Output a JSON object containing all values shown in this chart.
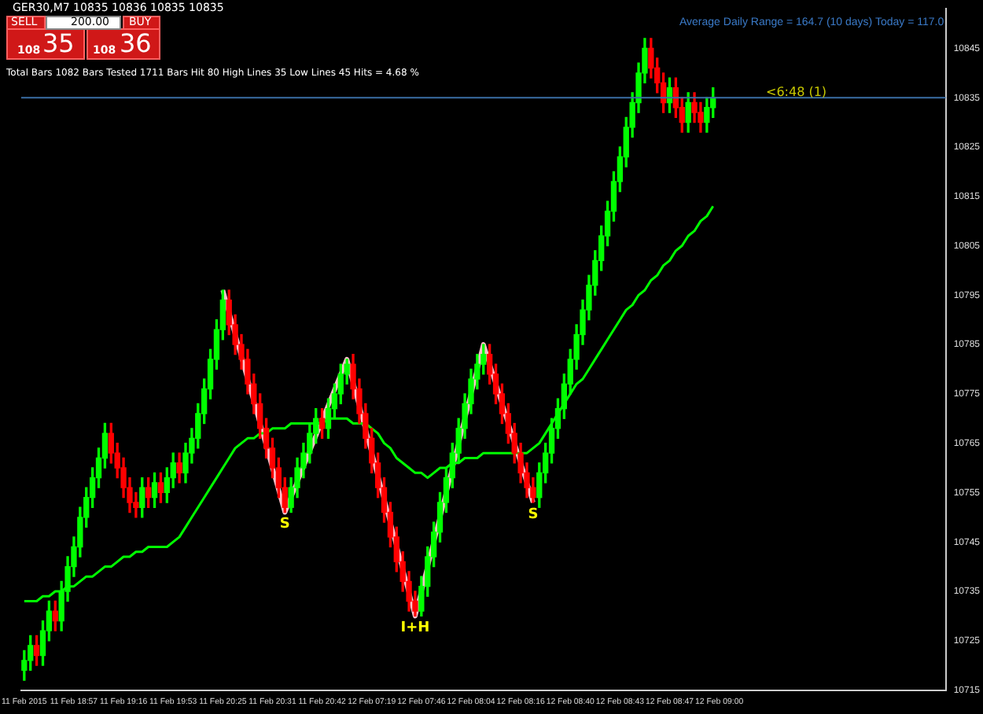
{
  "chart_data": {
    "type": "candlestick",
    "title": "GER30,M7  10835 10836 10835 10835",
    "categories": [
      "11 Feb 2015",
      null,
      null,
      null,
      null,
      null,
      null,
      null,
      "11 Feb 18:57",
      null,
      null,
      null,
      null,
      null,
      null,
      null,
      "11 Feb 19:16",
      null,
      null,
      null,
      null,
      null,
      null,
      null,
      "11 Feb 19:53",
      null,
      null,
      null,
      null,
      null,
      null,
      null,
      "11 Feb 20:25",
      null,
      null,
      null,
      null,
      null,
      null,
      null,
      "11 Feb 20:31",
      null,
      null,
      null,
      null,
      null,
      null,
      null,
      "11 Feb 20:42",
      null,
      null,
      null,
      null,
      null,
      null,
      null,
      "12 Feb 07:19",
      null,
      null,
      null,
      null,
      null,
      null,
      null,
      "12 Feb 07:46",
      null,
      null,
      null,
      null,
      null,
      null,
      null,
      "12 Feb 08:04",
      null,
      null,
      null,
      null,
      null,
      null,
      null,
      "12 Feb 08:16",
      null,
      null,
      null,
      null,
      null,
      null,
      null,
      "12 Feb 08:40",
      null,
      null,
      null,
      null,
      null,
      null,
      null,
      "12 Feb 08:43",
      null,
      null,
      null,
      null,
      null,
      null,
      null,
      "12 Feb 08:47",
      null,
      null,
      null,
      null,
      null,
      null,
      null,
      "12 Feb 09:00",
      null,
      null,
      null,
      null,
      null,
      null,
      null,
      null,
      null,
      null,
      null,
      null,
      null,
      null,
      null,
      null,
      null,
      null,
      null,
      null,
      null,
      null,
      null,
      null,
      null,
      null,
      null,
      null,
      null,
      null,
      null,
      null,
      null,
      null,
      null,
      null
    ],
    "ohlc": [
      [
        10719,
        10723,
        10717,
        10721
      ],
      [
        10721,
        10726,
        10719,
        10724
      ],
      [
        10724,
        10726,
        10720,
        10722
      ],
      [
        10722,
        10729,
        10720,
        10727
      ],
      [
        10727,
        10733,
        10725,
        10731
      ],
      [
        10731,
        10733,
        10727,
        10729
      ],
      [
        10729,
        10737,
        10727,
        10735
      ],
      [
        10735,
        10742,
        10733,
        10740
      ],
      [
        10740,
        10746,
        10738,
        10744
      ],
      [
        10744,
        10752,
        10742,
        10750
      ],
      [
        10750,
        10756,
        10748,
        10754
      ],
      [
        10754,
        10760,
        10752,
        10758
      ],
      [
        10758,
        10764,
        10756,
        10762
      ],
      [
        10762,
        10769,
        10760,
        10767
      ],
      [
        10767,
        10769,
        10761,
        10763
      ],
      [
        10763,
        10765,
        10758,
        10760
      ],
      [
        10760,
        10762,
        10754,
        10756
      ],
      [
        10756,
        10758,
        10751,
        10753
      ],
      [
        10753,
        10755,
        10750,
        10752
      ],
      [
        10752,
        10758,
        10750,
        10756
      ],
      [
        10756,
        10758,
        10752,
        10754
      ],
      [
        10754,
        10759,
        10752,
        10757
      ],
      [
        10757,
        10759,
        10753,
        10755
      ],
      [
        10755,
        10760,
        10753,
        10758
      ],
      [
        10758,
        10763,
        10756,
        10761
      ],
      [
        10761,
        10763,
        10757,
        10759
      ],
      [
        10759,
        10765,
        10757,
        10763
      ],
      [
        10763,
        10768,
        10761,
        10766
      ],
      [
        10766,
        10773,
        10764,
        10771
      ],
      [
        10771,
        10778,
        10769,
        10776
      ],
      [
        10776,
        10784,
        10774,
        10782
      ],
      [
        10782,
        10790,
        10780,
        10788
      ],
      [
        10788,
        10796,
        10786,
        10794
      ],
      [
        10794,
        10796,
        10787,
        10789
      ],
      [
        10789,
        10791,
        10783,
        10785
      ],
      [
        10785,
        10787,
        10780,
        10782
      ],
      [
        10782,
        10784,
        10775,
        10777
      ],
      [
        10777,
        10779,
        10771,
        10773
      ],
      [
        10773,
        10775,
        10766,
        10768
      ],
      [
        10768,
        10770,
        10762,
        10764
      ],
      [
        10764,
        10766,
        10758,
        10760
      ],
      [
        10760,
        10762,
        10754,
        10756
      ],
      [
        10756,
        10758,
        10751,
        10752
      ],
      [
        10752,
        10758,
        10751,
        10756
      ],
      [
        10756,
        10762,
        10754,
        10760
      ],
      [
        10760,
        10765,
        10758,
        10763
      ],
      [
        10763,
        10769,
        10761,
        10767
      ],
      [
        10767,
        10772,
        10765,
        10770
      ],
      [
        10770,
        10772,
        10766,
        10768
      ],
      [
        10768,
        10774,
        10766,
        10772
      ],
      [
        10772,
        10777,
        10770,
        10775
      ],
      [
        10775,
        10781,
        10773,
        10779
      ],
      [
        10779,
        10782,
        10777,
        10781
      ],
      [
        10781,
        10783,
        10774,
        10776
      ],
      [
        10776,
        10778,
        10769,
        10771
      ],
      [
        10771,
        10773,
        10764,
        10766
      ],
      [
        10766,
        10768,
        10759,
        10761
      ],
      [
        10761,
        10763,
        10754,
        10756
      ],
      [
        10756,
        10758,
        10749,
        10751
      ],
      [
        10751,
        10753,
        10744,
        10746
      ],
      [
        10746,
        10748,
        10739,
        10741
      ],
      [
        10741,
        10743,
        10735,
        10737
      ],
      [
        10737,
        10739,
        10731,
        10733
      ],
      [
        10733,
        10735,
        10730,
        10731
      ],
      [
        10731,
        10738,
        10730,
        10736
      ],
      [
        10736,
        10744,
        10734,
        10742
      ],
      [
        10742,
        10749,
        10740,
        10747
      ],
      [
        10747,
        10755,
        10745,
        10753
      ],
      [
        10753,
        10760,
        10751,
        10758
      ],
      [
        10758,
        10765,
        10756,
        10763
      ],
      [
        10763,
        10770,
        10761,
        10768
      ],
      [
        10768,
        10775,
        10766,
        10773
      ],
      [
        10773,
        10780,
        10771,
        10778
      ],
      [
        10778,
        10783,
        10776,
        10781
      ],
      [
        10781,
        10785,
        10779,
        10783
      ],
      [
        10783,
        10785,
        10777,
        10779
      ],
      [
        10779,
        10781,
        10773,
        10775
      ],
      [
        10775,
        10777,
        10769,
        10771
      ],
      [
        10771,
        10773,
        10765,
        10767
      ],
      [
        10767,
        10769,
        10761,
        10763
      ],
      [
        10763,
        10765,
        10757,
        10759
      ],
      [
        10759,
        10761,
        10754,
        10756
      ],
      [
        10756,
        10758,
        10753,
        10754
      ],
      [
        10754,
        10761,
        10752,
        10759
      ],
      [
        10759,
        10765,
        10757,
        10763
      ],
      [
        10763,
        10770,
        10761,
        10768
      ],
      [
        10768,
        10774,
        10766,
        10772
      ],
      [
        10772,
        10779,
        10770,
        10777
      ],
      [
        10777,
        10784,
        10775,
        10782
      ],
      [
        10782,
        10789,
        10780,
        10787
      ],
      [
        10787,
        10794,
        10785,
        10792
      ],
      [
        10792,
        10799,
        10790,
        10797
      ],
      [
        10797,
        10804,
        10795,
        10802
      ],
      [
        10802,
        10809,
        10800,
        10807
      ],
      [
        10807,
        10814,
        10805,
        10812
      ],
      [
        10812,
        10820,
        10810,
        10818
      ],
      [
        10818,
        10825,
        10816,
        10823
      ],
      [
        10823,
        10831,
        10821,
        10829
      ],
      [
        10829,
        10836,
        10827,
        10834
      ],
      [
        10834,
        10842,
        10832,
        10840
      ],
      [
        10840,
        10847,
        10838,
        10845
      ],
      [
        10845,
        10847,
        10839,
        10841
      ],
      [
        10841,
        10843,
        10836,
        10838
      ],
      [
        10838,
        10840,
        10832,
        10834
      ],
      [
        10834,
        10839,
        10832,
        10837
      ],
      [
        10837,
        10839,
        10831,
        10833
      ],
      [
        10833,
        10835,
        10828,
        10830
      ],
      [
        10830,
        10836,
        10828,
        10834
      ],
      [
        10834,
        10836,
        10830,
        10832
      ],
      [
        10832,
        10834,
        10828,
        10830
      ],
      [
        10830,
        10835,
        10828,
        10833
      ],
      [
        10833,
        10837,
        10831,
        10835
      ],
      null,
      null,
      null,
      null,
      null,
      null,
      null,
      null,
      null,
      null,
      null,
      null,
      null,
      null,
      null,
      null,
      null,
      null,
      null,
      null,
      null,
      null,
      null,
      null,
      null,
      null,
      null,
      null,
      null,
      null,
      null,
      null,
      null,
      null,
      null,
      null,
      null
    ],
    "series": [
      {
        "type": "line",
        "color": "#00ff00",
        "values": [
          10733,
          10733,
          10733,
          10734,
          10734,
          10735,
          10735,
          10736,
          10736,
          10737,
          10738,
          10738,
          10739,
          10740,
          10740,
          10741,
          10742,
          10742,
          10743,
          10743,
          10744,
          10744,
          10744,
          10744,
          10745,
          10746,
          10748,
          10750,
          10752,
          10754,
          10756,
          10758,
          10760,
          10762,
          10764,
          10765,
          10766,
          10766,
          10767,
          10767,
          10768,
          10768,
          10768,
          10769,
          10769,
          10769,
          10769,
          10769,
          10769,
          10770,
          10770,
          10770,
          10770,
          10769,
          10769,
          10769,
          10768,
          10767,
          10765,
          10764,
          10762,
          10761,
          10760,
          10759,
          10759,
          10758,
          10759,
          10760,
          10760,
          10761,
          10761,
          10762,
          10762,
          10762,
          10763,
          10763,
          10763,
          10763,
          10763,
          10763,
          10763,
          10763,
          10764,
          10765,
          10767,
          10769,
          10771,
          10773,
          10775,
          10777,
          10778,
          10780,
          10782,
          10784,
          10786,
          10788,
          10790,
          10792,
          10793,
          10795,
          10796,
          10798,
          10799,
          10801,
          10802,
          10804,
          10805,
          10807,
          10808,
          10810,
          10811,
          10813,
          null,
          null,
          null,
          null,
          null,
          null,
          null,
          null,
          null,
          null,
          null,
          null,
          null,
          null,
          null,
          null,
          null,
          null,
          null,
          null,
          null,
          null,
          null,
          null,
          null,
          null,
          null,
          null,
          null,
          null,
          null,
          null,
          null,
          null,
          null,
          null,
          null
        ]
      },
      {
        "type": "line",
        "color": "#ffc0cb",
        "values": [
          null,
          null,
          null,
          null,
          null,
          null,
          null,
          null,
          null,
          null,
          null,
          null,
          null,
          null,
          null,
          null,
          null,
          null,
          null,
          null,
          null,
          null,
          null,
          null,
          null,
          null,
          null,
          null,
          null,
          null,
          null,
          null,
          10796,
          null,
          null,
          null,
          null,
          null,
          null,
          null,
          null,
          null,
          10751,
          null,
          null,
          null,
          null,
          null,
          null,
          null,
          null,
          null,
          10782,
          null,
          null,
          null,
          null,
          null,
          null,
          null,
          null,
          null,
          null,
          10730,
          null,
          null,
          null,
          null,
          null,
          null,
          null,
          null,
          null,
          null,
          10785,
          null,
          null,
          null,
          null,
          null,
          null,
          null,
          10753,
          null,
          null,
          null,
          null,
          null,
          null,
          null,
          null,
          null,
          null,
          null,
          null,
          null,
          null,
          null,
          null,
          null,
          null,
          null,
          null,
          null,
          null,
          null,
          null,
          null,
          null,
          null,
          null,
          null,
          null,
          null,
          null,
          null,
          null,
          null,
          null,
          null,
          null,
          null,
          null,
          null,
          null,
          null,
          null,
          null,
          null,
          null,
          null,
          null,
          null,
          null,
          null,
          null,
          null,
          null,
          null,
          null,
          null,
          null,
          null,
          null,
          null,
          null,
          null,
          null,
          null
        ],
        "value_labels": [
          null,
          null,
          null,
          null,
          null,
          null,
          null,
          null,
          null,
          null,
          null,
          null,
          null,
          null,
          null,
          null,
          null,
          null,
          null,
          null,
          null,
          null,
          null,
          null,
          null,
          null,
          null,
          null,
          null,
          null,
          null,
          null,
          null,
          null,
          null,
          null,
          null,
          null,
          null,
          null,
          null,
          null,
          "S",
          null,
          null,
          null,
          null,
          null,
          null,
          null,
          null,
          null,
          null,
          null,
          null,
          null,
          null,
          null,
          null,
          null,
          null,
          null,
          null,
          "I+H",
          null,
          null,
          null,
          null,
          null,
          null,
          null,
          null,
          null,
          null,
          null,
          null,
          null,
          null,
          null,
          null,
          null,
          null,
          "S",
          null,
          null,
          null,
          null,
          null,
          null,
          null,
          null,
          null,
          null,
          null,
          null,
          null,
          null,
          null,
          null,
          null,
          null,
          null,
          null,
          null,
          null,
          null,
          null,
          null,
          null,
          null,
          null,
          null,
          null,
          null,
          null,
          null,
          null,
          null,
          null,
          null,
          null,
          null,
          null,
          null,
          null,
          null,
          null,
          null,
          null,
          null,
          null,
          null,
          null,
          null,
          null,
          null,
          null,
          null,
          null,
          null,
          null,
          null,
          null,
          null,
          null,
          null,
          null,
          null,
          null
        ]
      }
    ],
    "ylim": [
      10715,
      10853
    ],
    "yticks": [
      10715,
      10725,
      10735,
      10745,
      10755,
      10765,
      10775,
      10785,
      10795,
      10805,
      10815,
      10825,
      10835,
      10845
    ],
    "ref_lines": [
      {
        "axis": "y",
        "value": 10835,
        "color": "#3a6ea5"
      }
    ],
    "annotations": [
      "Total Bars 1082  Bars Tested 1711  Bars Hit 80  High Lines 35  Low Lines 45  Hits = 4.68 %",
      "Average Daily Range = 164.7 (10 days)   Today = 117.0",
      "<6:48 (1)",
      "SELL",
      "200.00",
      "BUY",
      "108",
      "35",
      "108",
      "36"
    ],
    "grid": false,
    "legend": false
  }
}
